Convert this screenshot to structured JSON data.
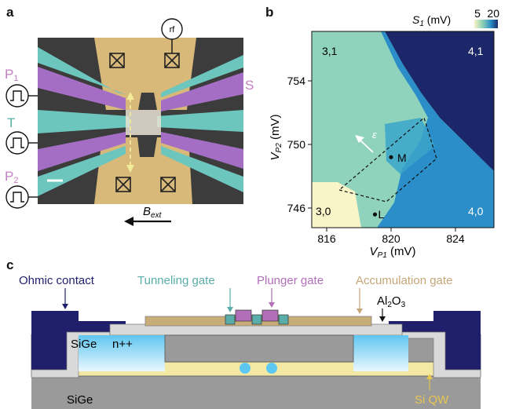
{
  "panels": {
    "a": "a",
    "b": "b",
    "c": "c"
  },
  "panel_a": {
    "rf": "rf",
    "P1_main": "P",
    "P1_sub": "1",
    "T": "T",
    "P2_main": "P",
    "P2_sub": "2",
    "S": "S",
    "B_main": "B",
    "B_sub": "ext",
    "colors": {
      "plunger": "#a872c6",
      "tunneling": "#6ec5bf",
      "accumulation": "#d9b97a",
      "background": "#3a3a3a"
    }
  },
  "chart_data": {
    "type": "heatmap",
    "xlabel_main": "V",
    "xlabel_sub": "P1",
    "xlabel_unit": " (mV)",
    "ylabel_main": "V",
    "ylabel_sub": "P2",
    "ylabel_unit": " (mV)",
    "x_ticks": [
      "816",
      "820",
      "824"
    ],
    "y_ticks": [
      "754",
      "750",
      "746"
    ],
    "xlim": [
      815,
      828
    ],
    "ylim": [
      745,
      757
    ],
    "colorbar": {
      "label_main": "S",
      "label_sub": "1",
      "label_unit": " (mV)",
      "min": "5",
      "max": "20"
    },
    "regions": [
      "3,1",
      "4,1",
      "3,0",
      "4,0"
    ],
    "points": [
      {
        "label": "M",
        "x": 820,
        "y": 749.2
      },
      {
        "label": "L",
        "x": 819,
        "y": 745.6
      }
    ],
    "epsilon": "ε"
  },
  "panel_c": {
    "ohmic": "Ohmic contact",
    "tunneling": "Tunneling gate",
    "plunger": "Plunger gate",
    "accumulation": "Accumulation gate",
    "al2o3_main": "Al",
    "al2o3_sub1": "2",
    "al2o3_mid": "O",
    "al2o3_sub2": "3",
    "sige_top": "SiGe",
    "npp": "n++",
    "sige_bottom": "SiGe",
    "siqw": "Si QW",
    "colors": {
      "ohmic": "#1f1f6b",
      "tunneling": "#5aada8",
      "plunger": "#b06fb8",
      "accumulation": "#c7ab78"
    }
  }
}
